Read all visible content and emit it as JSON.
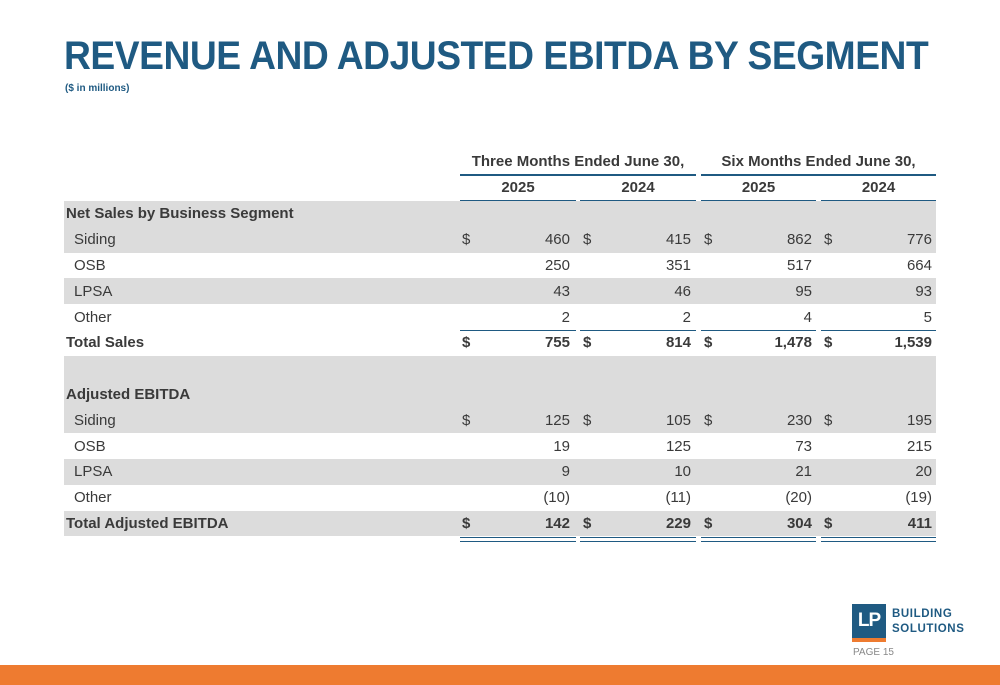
{
  "title": "REVENUE AND ADJUSTED EBITDA BY SEGMENT",
  "subtitle": "($ in millions)",
  "headers": {
    "period1": "Three Months Ended June 30,",
    "period2": "Six Months Ended June 30,",
    "years": [
      "2025",
      "2024",
      "2025",
      "2024"
    ]
  },
  "net_sales": {
    "heading": "Net Sales by Business Segment",
    "rows": [
      {
        "label": "Siding",
        "values": [
          "460",
          "415",
          "862",
          "776"
        ],
        "dollar": "$"
      },
      {
        "label": "OSB",
        "values": [
          "250",
          "351",
          "517",
          "664"
        ]
      },
      {
        "label": "LPSA",
        "values": [
          "43",
          "46",
          "95",
          "93"
        ]
      },
      {
        "label": "Other",
        "values": [
          "2",
          "2",
          "4",
          "5"
        ]
      }
    ],
    "total": {
      "label": "Total Sales",
      "values": [
        "755",
        "814",
        "1,478",
        "1,539"
      ],
      "dollar": "$"
    }
  },
  "ebitda": {
    "heading": "Adjusted EBITDA",
    "rows": [
      {
        "label": "Siding",
        "values": [
          "125",
          "105",
          "230",
          "195"
        ],
        "dollar": "$"
      },
      {
        "label": "OSB",
        "values": [
          "19",
          "125",
          "73",
          "215"
        ]
      },
      {
        "label": "LPSA",
        "values": [
          "9",
          "10",
          "21",
          "20"
        ]
      },
      {
        "label": "Other",
        "values": [
          "(10)",
          "(11)",
          "(20)",
          "(19)"
        ]
      }
    ],
    "total": {
      "label": "Total Adjusted EBITDA",
      "values": [
        "142",
        "229",
        "304",
        "411"
      ],
      "dollar": "$"
    }
  },
  "logo": {
    "mark": "LP",
    "line1": "BUILDING",
    "line2": "SOLUTIONS"
  },
  "page_label": "PAGE 15",
  "colors": {
    "brand_blue": "#1f5a82",
    "accent_orange": "#ee7b30",
    "row_shade": "#dcdcdc"
  }
}
